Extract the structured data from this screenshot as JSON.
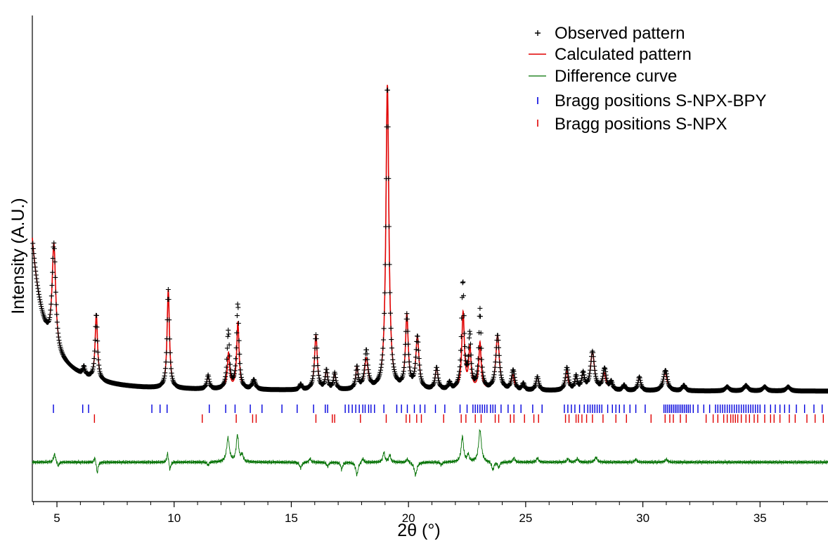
{
  "chart_data": {
    "type": "line",
    "title": "",
    "xlabel": "2θ (°)",
    "ylabel": "Intensity (A.U.)",
    "xlim": [
      3.95,
      37.9
    ],
    "y_ticks_shown": false,
    "grid": false,
    "legend_position": "top-right",
    "x_ticks": [
      5,
      10,
      15,
      20,
      25,
      30,
      35
    ],
    "x_tick_labels": [
      "5",
      "10",
      "15",
      "20",
      "25",
      "30",
      "35"
    ],
    "colors": {
      "observed": "#000000",
      "calculated": "#e00000",
      "difference": "#007000",
      "bragg_bpy": "#0000dd",
      "bragg_npx": "#e00000"
    },
    "legend": [
      {
        "key": "observed",
        "marker": "cross",
        "label": "Observed pattern"
      },
      {
        "key": "calculated",
        "marker": "line",
        "label": "Calculated pattern"
      },
      {
        "key": "difference",
        "marker": "line",
        "label": "Difference curve"
      },
      {
        "key": "bragg_bpy",
        "marker": "tick",
        "label": "Bragg positions S-NPX-BPY"
      },
      {
        "key": "bragg_npx",
        "marker": "tick",
        "label": "Bragg positions S-NPX"
      }
    ],
    "observed_overshoot": [
      {
        "x": 12.3,
        "extra": 17
      },
      {
        "x": 12.7,
        "extra": 14
      },
      {
        "x": 18.2,
        "extra": 6
      },
      {
        "x": 22.3,
        "extra": 26
      },
      {
        "x": 22.6,
        "extra": 9
      },
      {
        "x": 23.05,
        "extra": 24
      },
      {
        "x": 24.5,
        "extra": 5
      },
      {
        "x": 26.8,
        "extra": 4
      },
      {
        "x": 28.4,
        "extra": 5
      },
      {
        "x": 31.0,
        "extra": 3
      }
    ],
    "calculated_peaks": [
      {
        "x": 4.87,
        "height": 76,
        "width": 0.09
      },
      {
        "x": 6.15,
        "height": 6,
        "width": 0.05
      },
      {
        "x": 6.68,
        "height": 48,
        "width": 0.06
      },
      {
        "x": 9.75,
        "height": 72,
        "width": 0.06
      },
      {
        "x": 11.45,
        "height": 10,
        "width": 0.06
      },
      {
        "x": 12.32,
        "height": 26,
        "width": 0.06
      },
      {
        "x": 12.72,
        "height": 49,
        "width": 0.06
      },
      {
        "x": 13.4,
        "height": 7,
        "width": 0.08
      },
      {
        "x": 15.4,
        "height": 4,
        "width": 0.06
      },
      {
        "x": 16.05,
        "height": 40,
        "width": 0.07
      },
      {
        "x": 16.5,
        "height": 14,
        "width": 0.06
      },
      {
        "x": 16.85,
        "height": 12,
        "width": 0.06
      },
      {
        "x": 17.8,
        "height": 16,
        "width": 0.06
      },
      {
        "x": 18.2,
        "height": 22,
        "width": 0.09
      },
      {
        "x": 19.1,
        "height": 222,
        "width": 0.075
      },
      {
        "x": 19.93,
        "height": 53,
        "width": 0.07
      },
      {
        "x": 20.38,
        "height": 38,
        "width": 0.08
      },
      {
        "x": 21.2,
        "height": 16,
        "width": 0.07
      },
      {
        "x": 21.75,
        "height": 5,
        "width": 0.06
      },
      {
        "x": 22.33,
        "height": 56,
        "width": 0.065
      },
      {
        "x": 22.62,
        "height": 30,
        "width": 0.06
      },
      {
        "x": 23.05,
        "height": 34,
        "width": 0.06
      },
      {
        "x": 23.8,
        "height": 40,
        "width": 0.09
      },
      {
        "x": 24.45,
        "height": 11,
        "width": 0.07
      },
      {
        "x": 24.9,
        "height": 5,
        "width": 0.06
      },
      {
        "x": 25.5,
        "height": 10,
        "width": 0.07
      },
      {
        "x": 26.75,
        "height": 14,
        "width": 0.07
      },
      {
        "x": 27.15,
        "height": 10,
        "width": 0.06
      },
      {
        "x": 27.45,
        "height": 12,
        "width": 0.07
      },
      {
        "x": 27.85,
        "height": 28,
        "width": 0.1
      },
      {
        "x": 28.35,
        "height": 12,
        "width": 0.08
      },
      {
        "x": 28.65,
        "height": 6,
        "width": 0.07
      },
      {
        "x": 29.2,
        "height": 4,
        "width": 0.07
      },
      {
        "x": 29.85,
        "height": 10,
        "width": 0.07
      },
      {
        "x": 30.95,
        "height": 13,
        "width": 0.1
      },
      {
        "x": 31.75,
        "height": 4,
        "width": 0.08
      },
      {
        "x": 33.6,
        "height": 3,
        "width": 0.1
      },
      {
        "x": 34.4,
        "height": 4,
        "width": 0.1
      },
      {
        "x": 35.2,
        "height": 3,
        "width": 0.1
      },
      {
        "x": 36.2,
        "height": 3,
        "width": 0.1
      }
    ],
    "difference_features": [
      {
        "x": 4.9,
        "amp": 12,
        "width": 0.05
      },
      {
        "x": 5.05,
        "amp": -6,
        "width": 0.05
      },
      {
        "x": 6.62,
        "amp": 8,
        "width": 0.04
      },
      {
        "x": 6.72,
        "amp": -16,
        "width": 0.04
      },
      {
        "x": 9.72,
        "amp": 14,
        "width": 0.04
      },
      {
        "x": 9.82,
        "amp": -12,
        "width": 0.04
      },
      {
        "x": 11.45,
        "amp": -5,
        "width": 0.04
      },
      {
        "x": 12.3,
        "amp": 34,
        "width": 0.07
      },
      {
        "x": 12.7,
        "amp": 38,
        "width": 0.06
      },
      {
        "x": 12.9,
        "amp": 10,
        "width": 0.05
      },
      {
        "x": 15.4,
        "amp": -8,
        "width": 0.06
      },
      {
        "x": 15.8,
        "amp": 5,
        "width": 0.05
      },
      {
        "x": 16.55,
        "amp": -6,
        "width": 0.05
      },
      {
        "x": 17.15,
        "amp": -10,
        "width": 0.05
      },
      {
        "x": 17.8,
        "amp": -18,
        "width": 0.06
      },
      {
        "x": 18.05,
        "amp": 6,
        "width": 0.05
      },
      {
        "x": 18.95,
        "amp": 14,
        "width": 0.05
      },
      {
        "x": 19.2,
        "amp": 10,
        "width": 0.05
      },
      {
        "x": 19.95,
        "amp": 5,
        "width": 0.05
      },
      {
        "x": 20.3,
        "amp": -18,
        "width": 0.07
      },
      {
        "x": 21.4,
        "amp": -4,
        "width": 0.05
      },
      {
        "x": 22.3,
        "amp": 36,
        "width": 0.06
      },
      {
        "x": 22.55,
        "amp": 10,
        "width": 0.05
      },
      {
        "x": 23.05,
        "amp": 46,
        "width": 0.07
      },
      {
        "x": 23.6,
        "amp": -12,
        "width": 0.05
      },
      {
        "x": 23.85,
        "amp": -8,
        "width": 0.05
      },
      {
        "x": 24.5,
        "amp": 6,
        "width": 0.05
      },
      {
        "x": 25.5,
        "amp": 6,
        "width": 0.05
      },
      {
        "x": 26.8,
        "amp": 5,
        "width": 0.05
      },
      {
        "x": 27.2,
        "amp": 5,
        "width": 0.05
      },
      {
        "x": 28.0,
        "amp": 7,
        "width": 0.06
      },
      {
        "x": 29.7,
        "amp": 4,
        "width": 0.05
      },
      {
        "x": 31.0,
        "amp": 4,
        "width": 0.06
      }
    ],
    "bragg_bpy": [
      4.85,
      6.1,
      6.35,
      9.05,
      9.4,
      9.7,
      11.5,
      12.2,
      12.6,
      13.25,
      13.75,
      14.6,
      15.25,
      15.95,
      16.45,
      16.55,
      17.3,
      17.45,
      17.6,
      17.75,
      17.9,
      18.05,
      18.15,
      18.3,
      18.4,
      18.55,
      18.95,
      19.5,
      19.7,
      19.95,
      20.25,
      20.5,
      20.7,
      21.15,
      21.55,
      22.2,
      22.5,
      22.75,
      22.85,
      22.95,
      23.05,
      23.15,
      23.25,
      23.35,
      23.5,
      23.6,
      23.7,
      23.95,
      24.25,
      24.5,
      24.8,
      25.3,
      25.7,
      26.65,
      26.8,
      26.95,
      27.1,
      27.3,
      27.5,
      27.65,
      27.75,
      27.85,
      27.95,
      28.05,
      28.15,
      28.25,
      28.5,
      28.7,
      28.85,
      29.0,
      29.2,
      29.45,
      29.7,
      30.1,
      30.9,
      30.98,
      31.06,
      31.14,
      31.22,
      31.3,
      31.38,
      31.46,
      31.54,
      31.62,
      31.7,
      31.78,
      31.86,
      31.94,
      32.02,
      32.15,
      32.35,
      32.6,
      32.85,
      33.1,
      33.2,
      33.3,
      33.4,
      33.5,
      33.6,
      33.7,
      33.8,
      33.9,
      34.0,
      34.1,
      34.2,
      34.3,
      34.4,
      34.5,
      34.6,
      34.7,
      34.8,
      34.9,
      35.0,
      35.2,
      35.45,
      35.65,
      35.85,
      36.05,
      36.25,
      36.55,
      36.9,
      37.3,
      37.65
    ],
    "bragg_npx": [
      6.6,
      11.2,
      12.65,
      13.35,
      13.5,
      16.05,
      16.75,
      16.85,
      17.95,
      19.05,
      19.9,
      20.05,
      20.35,
      20.55,
      21.5,
      22.25,
      22.45,
      22.85,
      23.1,
      23.7,
      23.85,
      24.35,
      24.5,
      24.95,
      25.35,
      25.55,
      26.7,
      26.85,
      27.15,
      27.25,
      27.4,
      27.6,
      27.85,
      28.3,
      28.85,
      29.3,
      30.35,
      30.95,
      31.15,
      31.3,
      31.6,
      31.85,
      32.7,
      33.0,
      33.2,
      33.45,
      33.6,
      33.75,
      33.85,
      33.95,
      34.05,
      34.2,
      34.4,
      34.55,
      34.75,
      34.9,
      35.2,
      35.45,
      35.6,
      35.85,
      36.25,
      36.5,
      37.0,
      37.35,
      37.7
    ]
  }
}
